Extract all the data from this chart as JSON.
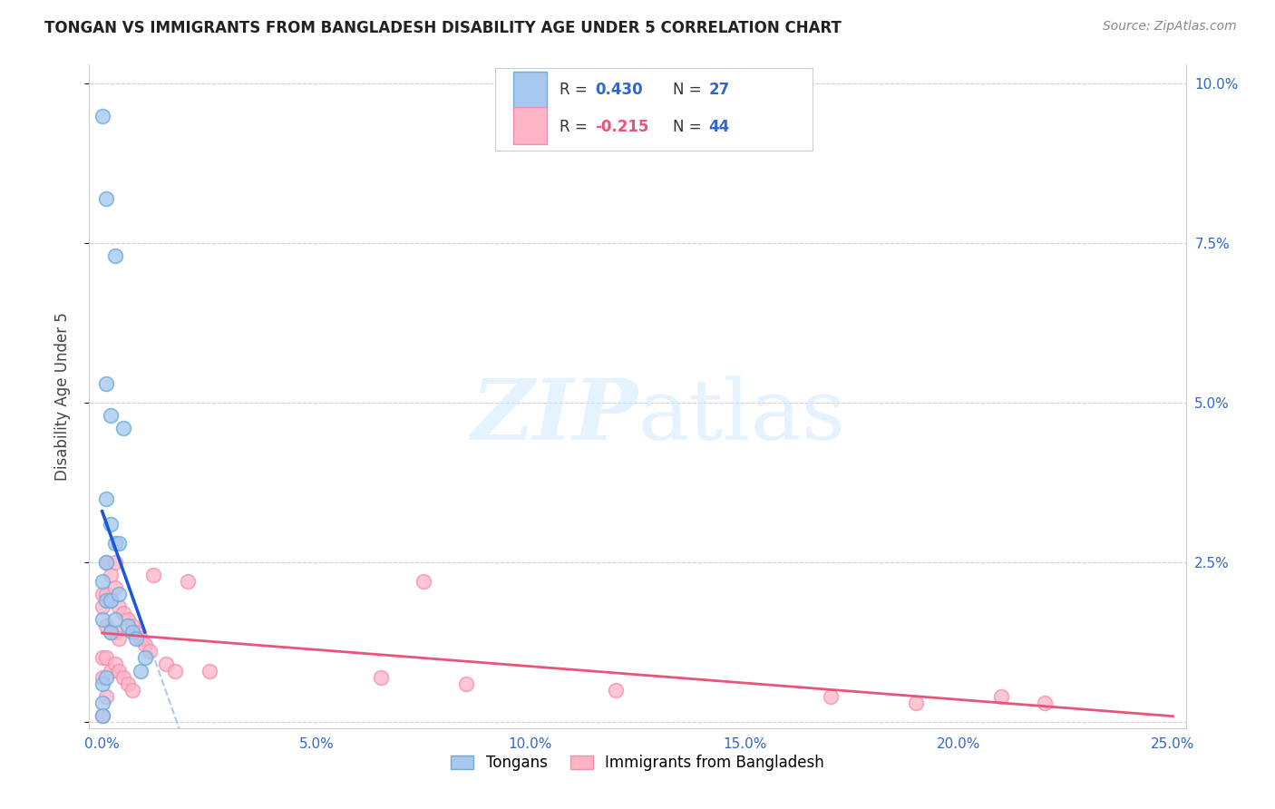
{
  "title": "TONGAN VS IMMIGRANTS FROM BANGLADESH DISABILITY AGE UNDER 5 CORRELATION CHART",
  "source": "Source: ZipAtlas.com",
  "ylabel": "Disability Age Under 5",
  "xlim": [
    0.0,
    0.25
  ],
  "ylim": [
    0.0,
    0.1
  ],
  "xticks": [
    0.0,
    0.05,
    0.1,
    0.15,
    0.2,
    0.25
  ],
  "yticks": [
    0.0,
    0.025,
    0.05,
    0.075,
    0.1
  ],
  "xticklabels": [
    "0.0%",
    "5.0%",
    "10.0%",
    "15.0%",
    "20.0%",
    "25.0%"
  ],
  "yticklabels_right": [
    "",
    "2.5%",
    "5.0%",
    "7.5%",
    "10.0%"
  ],
  "tongan_color": "#a8c8f0",
  "tongan_edge": "#6baed6",
  "bangladesh_color": "#ffb3c6",
  "bangladesh_edge": "#f48cb1",
  "line_tongan_color": "#1a56db",
  "line_bangladesh_color": "#e8547a",
  "line_dash_color": "#b0c8e8",
  "watermark_color": "#ddeeff",
  "grid_color": "#d0d0d0",
  "tick_color": "#3366cc",
  "title_color": "#222222",
  "source_color": "#888888",
  "legend_r1_color": "#3366cc",
  "legend_r2_color": "#e8547a",
  "legend_n_color": "#3366cc",
  "tongan_x": [
    0.0,
    0.0,
    0.0,
    0.0,
    0.0,
    0.0,
    0.001,
    0.001,
    0.001,
    0.001,
    0.001,
    0.001,
    0.002,
    0.002,
    0.002,
    0.002,
    0.003,
    0.003,
    0.003,
    0.004,
    0.004,
    0.005,
    0.006,
    0.007,
    0.008,
    0.009,
    0.01
  ],
  "tongan_y": [
    0.095,
    0.022,
    0.016,
    0.006,
    0.003,
    0.001,
    0.082,
    0.053,
    0.035,
    0.025,
    0.019,
    0.007,
    0.048,
    0.031,
    0.019,
    0.014,
    0.073,
    0.028,
    0.016,
    0.028,
    0.02,
    0.046,
    0.015,
    0.014,
    0.013,
    0.008,
    0.01
  ],
  "bangladesh_x": [
    0.0,
    0.0,
    0.0,
    0.0,
    0.0,
    0.001,
    0.001,
    0.001,
    0.001,
    0.001,
    0.002,
    0.002,
    0.002,
    0.002,
    0.003,
    0.003,
    0.003,
    0.003,
    0.004,
    0.004,
    0.004,
    0.005,
    0.005,
    0.006,
    0.006,
    0.007,
    0.007,
    0.008,
    0.009,
    0.01,
    0.011,
    0.012,
    0.015,
    0.017,
    0.02,
    0.025,
    0.065,
    0.075,
    0.085,
    0.12,
    0.17,
    0.19,
    0.21,
    0.22
  ],
  "bangladesh_y": [
    0.02,
    0.018,
    0.01,
    0.007,
    0.001,
    0.025,
    0.02,
    0.015,
    0.01,
    0.004,
    0.023,
    0.019,
    0.014,
    0.008,
    0.025,
    0.021,
    0.014,
    0.009,
    0.018,
    0.013,
    0.008,
    0.017,
    0.007,
    0.016,
    0.006,
    0.015,
    0.005,
    0.014,
    0.013,
    0.012,
    0.011,
    0.023,
    0.009,
    0.008,
    0.022,
    0.008,
    0.007,
    0.022,
    0.006,
    0.005,
    0.004,
    0.003,
    0.004,
    0.003
  ]
}
